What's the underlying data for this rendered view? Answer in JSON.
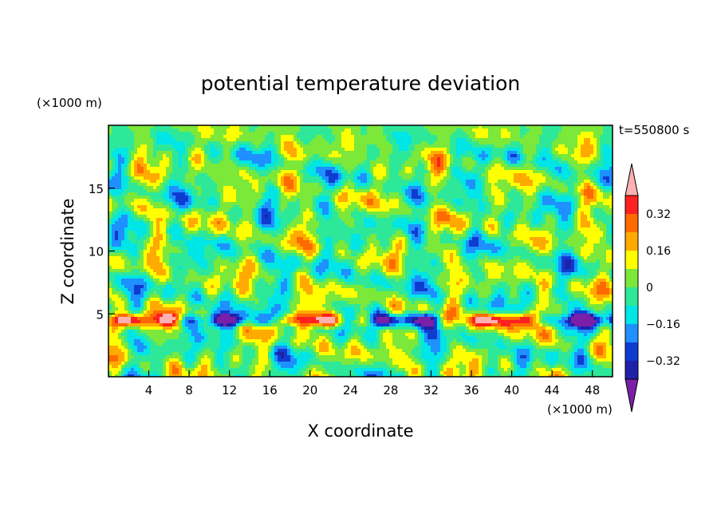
{
  "chart_data": {
    "type": "heatmap",
    "title": "potential temperature deviation",
    "time_label": "t=550800 s",
    "xlabel": "X coordinate",
    "ylabel": "Z coordinate",
    "x_unit": "(×1000 m)",
    "y_unit": "(×1000 m)",
    "xlim": [
      0,
      50
    ],
    "ylim": [
      0,
      20
    ],
    "x_ticks": [
      4,
      8,
      12,
      16,
      20,
      24,
      28,
      32,
      36,
      40,
      44,
      48
    ],
    "y_ticks": [
      5,
      10,
      15
    ],
    "colorbar": {
      "levels": [
        -0.4,
        -0.32,
        -0.24,
        -0.16,
        -0.08,
        0,
        0.08,
        0.16,
        0.24,
        0.32,
        0.4
      ],
      "labels": [
        "0.32",
        "0.16",
        "0",
        "−0.16",
        "−0.32"
      ],
      "label_values": [
        0.32,
        0.16,
        0,
        -0.16,
        -0.32
      ],
      "colors": [
        "#7b1fa8",
        "#2020a8",
        "#0f3cd0",
        "#1e90ff",
        "#00e5e5",
        "#2ee89a",
        "#7be83a",
        "#ffff00",
        "#ffaa00",
        "#ff6a00",
        "#ff2020",
        "#ffb0b0"
      ],
      "extend": "both"
    }
  }
}
